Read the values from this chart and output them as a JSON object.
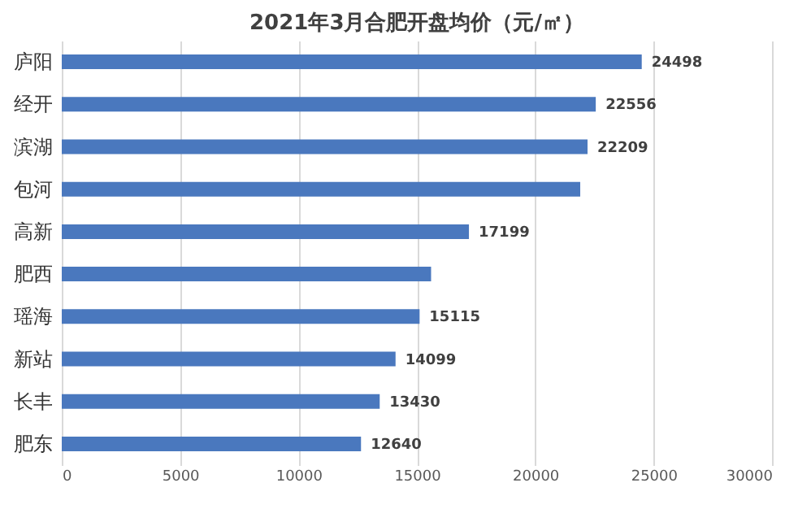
{
  "chart_data": {
    "type": "bar",
    "orientation": "horizontal",
    "title": "2021年3月合肥开盘均价（元/㎡）",
    "categories": [
      "庐阳",
      "经开",
      "滨湖",
      "包河",
      "高新",
      "肥西",
      "瑶海",
      "新站",
      "长丰",
      "肥东"
    ],
    "values": [
      24498,
      22556,
      22209,
      21900,
      17199,
      15600,
      15115,
      14099,
      13430,
      12640
    ],
    "value_labels": [
      "24498",
      "22556",
      "22209",
      null,
      "17199",
      null,
      "15115",
      "14099",
      "13430",
      "12640"
    ],
    "color": "#4a78be",
    "xlim": [
      0,
      30000
    ],
    "xticks": [
      0,
      5000,
      10000,
      15000,
      20000,
      25000,
      30000
    ],
    "grid": "x"
  }
}
